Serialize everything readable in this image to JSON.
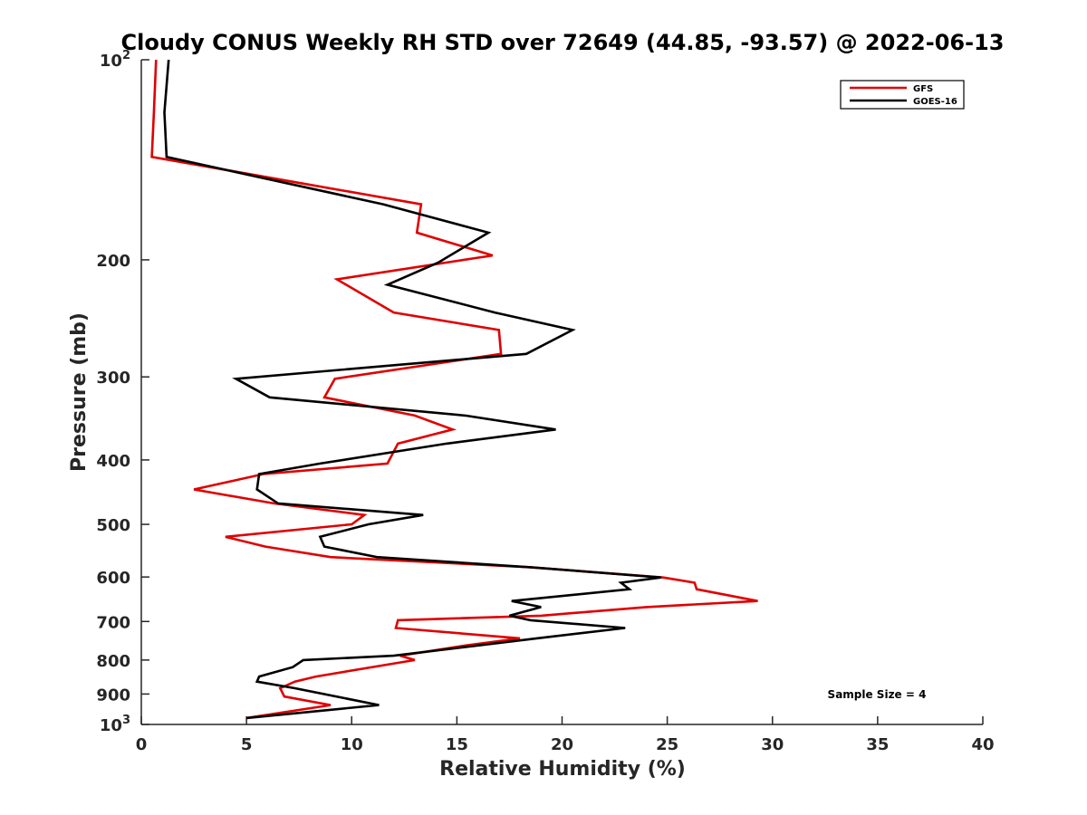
{
  "chart_data": {
    "type": "line",
    "title": "Cloudy CONUS Weekly RH STD over 72649 (44.85, -93.57) @ 2022-06-13",
    "xlabel": "Relative Humidity (%)",
    "ylabel": "Pressure (mb)",
    "xlim": [
      0,
      40
    ],
    "ylim": [
      100,
      1000
    ],
    "y_scale": "log",
    "y_reversed": true,
    "x_ticks": [
      "0",
      "5",
      "10",
      "15",
      "20",
      "25",
      "30",
      "35",
      "40"
    ],
    "y_ticks": [
      {
        "value": 100,
        "base": "10",
        "exp": "2"
      },
      {
        "value": 200,
        "label": "200"
      },
      {
        "value": 300,
        "label": "300"
      },
      {
        "value": 400,
        "label": "400"
      },
      {
        "value": 500,
        "label": "500"
      },
      {
        "value": 600,
        "label": "600"
      },
      {
        "value": 700,
        "label": "700"
      },
      {
        "value": 800,
        "label": "800"
      },
      {
        "value": 900,
        "label": "900"
      },
      {
        "value": 1000,
        "base": "10",
        "exp": "3"
      }
    ],
    "grid": false,
    "legend_position": "top-right",
    "annotation": "Sample Size = 4",
    "series": [
      {
        "name": "GFS",
        "color": "#e00000",
        "points": [
          [
            0.7,
            100
          ],
          [
            0.6,
            120
          ],
          [
            0.5,
            140
          ],
          [
            13.3,
            165
          ],
          [
            13.1,
            182
          ],
          [
            16.7,
            197
          ],
          [
            9.3,
            214
          ],
          [
            12.0,
            240
          ],
          [
            17.0,
            255
          ],
          [
            17.1,
            277
          ],
          [
            9.2,
            302
          ],
          [
            8.7,
            322
          ],
          [
            13.0,
            343
          ],
          [
            14.8,
            360
          ],
          [
            12.2,
            378
          ],
          [
            11.7,
            405
          ],
          [
            5.8,
            420
          ],
          [
            2.5,
            443
          ],
          [
            6.3,
            465
          ],
          [
            10.6,
            484
          ],
          [
            10.0,
            500
          ],
          [
            4.0,
            522
          ],
          [
            5.9,
            540
          ],
          [
            9.0,
            560
          ],
          [
            18.5,
            580
          ],
          [
            24.8,
            601
          ],
          [
            26.3,
            612
          ],
          [
            26.4,
            626
          ],
          [
            29.3,
            652
          ],
          [
            24.0,
            666
          ],
          [
            19.0,
            686
          ],
          [
            12.2,
            697
          ],
          [
            12.1,
            716
          ],
          [
            18.0,
            742
          ],
          [
            15.5,
            760
          ],
          [
            12.3,
            788
          ],
          [
            13.0,
            800
          ],
          [
            8.3,
            847
          ],
          [
            7.3,
            862
          ],
          [
            6.6,
            882
          ],
          [
            6.8,
            908
          ],
          [
            9.0,
            935
          ],
          [
            5.0,
            978
          ]
        ]
      },
      {
        "name": "GOES-16",
        "color": "#000000",
        "points": [
          [
            1.3,
            100
          ],
          [
            1.1,
            120
          ],
          [
            1.2,
            140
          ],
          [
            11.5,
            165
          ],
          [
            16.5,
            182
          ],
          [
            14.1,
            202
          ],
          [
            11.7,
            218
          ],
          [
            16.8,
            240
          ],
          [
            20.5,
            255
          ],
          [
            18.3,
            277
          ],
          [
            4.5,
            302
          ],
          [
            6.1,
            322
          ],
          [
            15.4,
            343
          ],
          [
            19.7,
            360
          ],
          [
            14.5,
            378
          ],
          [
            8.5,
            405
          ],
          [
            5.6,
            420
          ],
          [
            5.5,
            443
          ],
          [
            6.5,
            465
          ],
          [
            13.4,
            484
          ],
          [
            10.8,
            500
          ],
          [
            8.5,
            522
          ],
          [
            8.7,
            540
          ],
          [
            11.2,
            560
          ],
          [
            18.5,
            580
          ],
          [
            24.7,
            601
          ],
          [
            22.8,
            612
          ],
          [
            23.2,
            626
          ],
          [
            17.6,
            652
          ],
          [
            19.0,
            666
          ],
          [
            17.5,
            686
          ],
          [
            18.5,
            697
          ],
          [
            23.0,
            716
          ],
          [
            18.8,
            742
          ],
          [
            12.0,
            788
          ],
          [
            7.7,
            800
          ],
          [
            7.2,
            820
          ],
          [
            5.6,
            847
          ],
          [
            5.5,
            862
          ],
          [
            7.3,
            882
          ],
          [
            11.3,
            935
          ],
          [
            5.0,
            978
          ]
        ]
      }
    ]
  }
}
